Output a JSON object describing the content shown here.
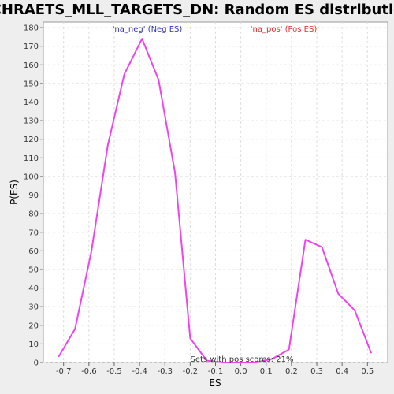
{
  "chart_data": {
    "type": "line",
    "title": "SCHRAETS_MLL_TARGETS_DN: Random ES distribution",
    "xlabel": "ES",
    "ylabel": "P(ES)",
    "xlim": [
      -0.78,
      0.58
    ],
    "ylim": [
      0,
      183
    ],
    "x_ticks": [
      -0.7,
      -0.6,
      -0.5,
      -0.4,
      -0.3,
      -0.2,
      -0.1,
      0.0,
      0.1,
      0.2,
      0.3,
      0.4,
      0.5
    ],
    "x_tick_labels": [
      "-0.7",
      "-0.6",
      "-0.5",
      "-0.4",
      "-0.3",
      "-0.2",
      "-0.1",
      "0.0",
      "0.1",
      "0.2",
      "0.3",
      "0.4",
      "0.5"
    ],
    "y_ticks": [
      0,
      10,
      20,
      30,
      40,
      50,
      60,
      70,
      80,
      90,
      100,
      110,
      120,
      130,
      140,
      150,
      160,
      170,
      180
    ],
    "grid": true,
    "series": [
      {
        "color": "#ee44ee",
        "x": [
          -0.72,
          -0.655,
          -0.59,
          -0.525,
          -0.46,
          -0.39,
          -0.325,
          -0.26,
          -0.2,
          -0.135,
          -0.07,
          0.0,
          0.06,
          0.125,
          0.19,
          0.255,
          0.32,
          0.385,
          0.45,
          0.515
        ],
        "y": [
          3,
          18,
          60,
          117,
          155,
          174,
          152,
          102,
          13,
          1,
          0,
          0,
          0,
          2,
          7,
          66,
          62,
          37,
          28,
          5
        ]
      }
    ],
    "legend": [
      {
        "label": "'na_neg' (Neg ES)",
        "color": "#3333cc"
      },
      {
        "label": "'na_pos' (Pos ES)",
        "color": "#dd3333"
      }
    ],
    "annotation": "Sets with pos scores: 21%"
  }
}
